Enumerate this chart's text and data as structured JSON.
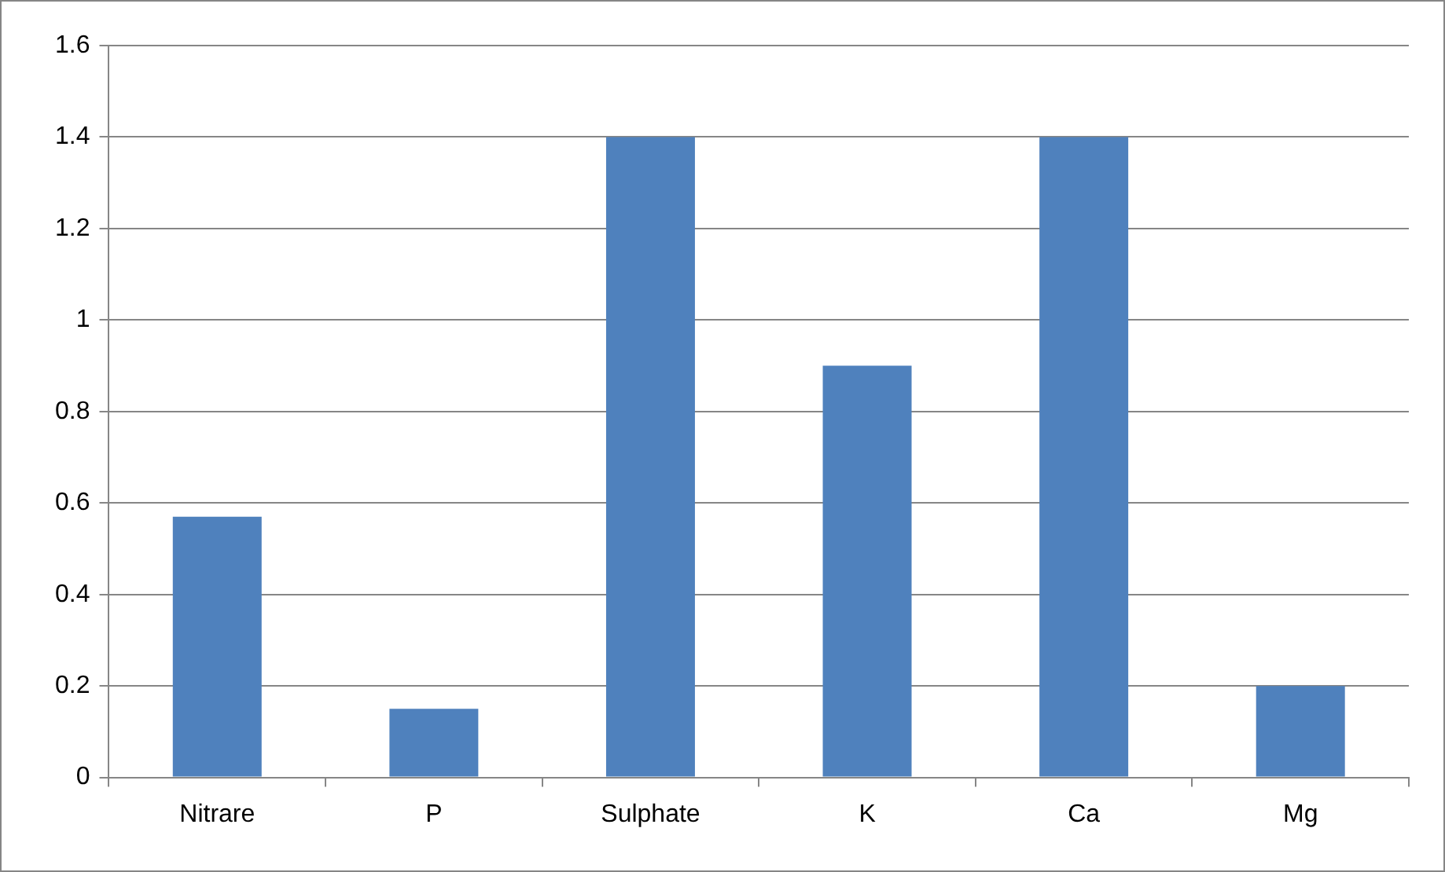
{
  "chart_data": {
    "type": "bar",
    "categories": [
      "Nitrare",
      "P",
      "Sulphate",
      "K",
      "Ca",
      "Mg"
    ],
    "values": [
      0.57,
      0.15,
      1.4,
      0.9,
      1.4,
      0.2
    ],
    "color": "#4f81bd",
    "ylim": [
      0,
      1.6
    ],
    "yticks": [
      0,
      0.2,
      0.4,
      0.6,
      0.8,
      1,
      1.2,
      1.4,
      1.6
    ],
    "grid": "y",
    "legend": false
  }
}
